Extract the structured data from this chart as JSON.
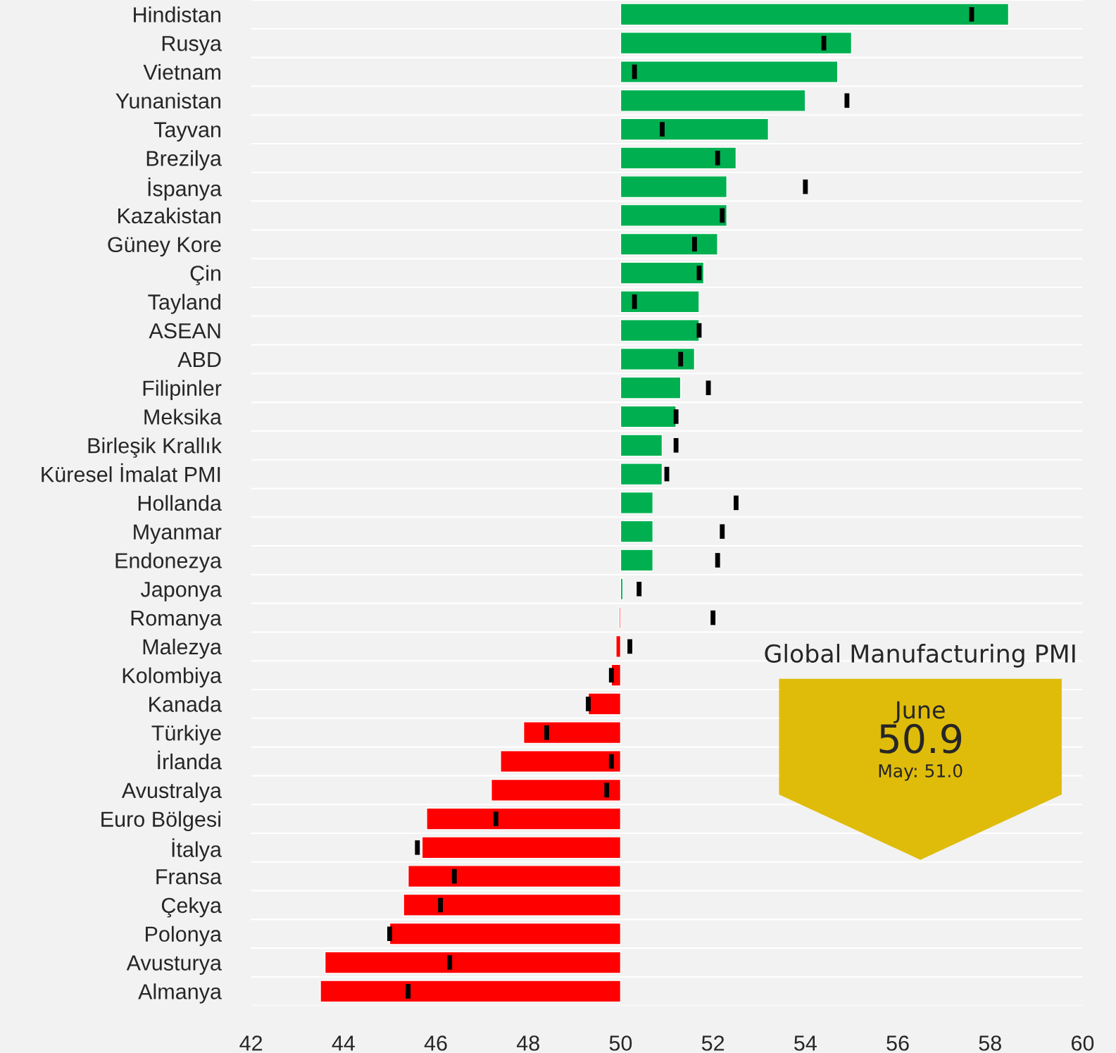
{
  "chart_data": {
    "type": "bar",
    "orientation": "horizontal",
    "categories": [
      "Hindistan",
      "Rusya",
      "Vietnam",
      "Yunanistan",
      "Tayvan",
      "Brezilya",
      "İspanya",
      "Kazakistan",
      "Güney Kore",
      "Çin",
      "Tayland",
      "ASEAN",
      "ABD",
      "Filipinler",
      "Meksika",
      "Birleşik Krallık",
      "Küresel İmalat PMI",
      "Hollanda",
      "Myanmar",
      "Endonezya",
      "Japonya",
      "Romanya",
      "Malezya",
      "Kolombiya",
      "Kanada",
      "Türkiye",
      "İrlanda",
      "Avustralya",
      "Euro Bölgesi",
      "İtalya",
      "Fransa",
      "Çekya",
      "Polonya",
      "Avusturya",
      "Almanya"
    ],
    "series": [
      {
        "type": "bar",
        "base": [
          50,
          50,
          50,
          50,
          50,
          50,
          50,
          50,
          50,
          50,
          50,
          50,
          50,
          50,
          50,
          50,
          50,
          50,
          50,
          50,
          50,
          50,
          50,
          50,
          50,
          50,
          50,
          50,
          50,
          50,
          50,
          50,
          50,
          50,
          50
        ],
        "values": [
          8.4,
          5.0,
          4.7,
          4.0,
          3.2,
          2.5,
          2.3,
          2.3,
          2.1,
          1.8,
          1.7,
          1.7,
          1.6,
          1.3,
          1.2,
          0.9,
          0.9,
          0.7,
          0.7,
          0.7,
          0.05,
          -0.03,
          -0.1,
          -0.2,
          -0.7,
          -2.1,
          -2.6,
          -2.8,
          -4.2,
          -4.3,
          -4.6,
          -4.7,
          -5.0,
          -6.4,
          -6.5
        ],
        "colors": [
          "#00b050",
          "#00b050",
          "#00b050",
          "#00b050",
          "#00b050",
          "#00b050",
          "#00b050",
          "#00b050",
          "#00b050",
          "#00b050",
          "#00b050",
          "#00b050",
          "#00b050",
          "#00b050",
          "#00b050",
          "#00b050",
          "#00b050",
          "#00b050",
          "#00b050",
          "#00b050",
          "#00b050",
          "#ff0000",
          "#ff0000",
          "#ff0000",
          "#ff0000",
          "#ff0000",
          "#ff0000",
          "#ff0000",
          "#ff0000",
          "#ff0000",
          "#ff0000",
          "#ff0000",
          "#ff0000",
          "#ff0000",
          "#ff0000"
        ]
      },
      {
        "type": "scatter",
        "color": "#000000",
        "values": [
          57.6,
          54.4,
          50.3,
          54.9,
          50.9,
          52.1,
          54.0,
          52.2,
          51.6,
          51.7,
          50.3,
          51.7,
          51.3,
          51.9,
          51.2,
          51.2,
          51.0,
          52.5,
          52.2,
          52.1,
          50.4,
          52.0,
          50.2,
          49.8,
          49.3,
          48.4,
          49.8,
          49.7,
          47.3,
          45.6,
          46.4,
          46.1,
          45.0,
          46.3,
          45.4
        ]
      }
    ],
    "xlim": [
      42,
      60
    ],
    "xticks": [
      42,
      44,
      46,
      48,
      50,
      52,
      54,
      56,
      58,
      60
    ],
    "grid": "y",
    "annotations": [
      "Global Manufacturing PMI",
      "June",
      "50.9",
      "May: 51.0"
    ]
  }
}
